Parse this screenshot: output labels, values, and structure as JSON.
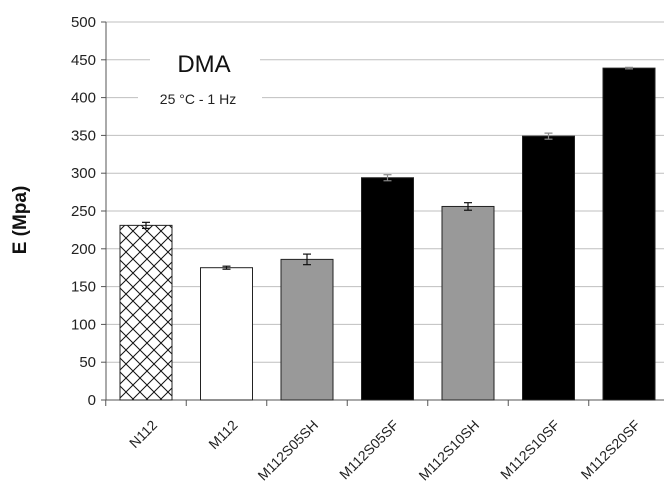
{
  "chart_data": {
    "type": "bar",
    "title": "",
    "xlabel": "",
    "ylabel": "E (Mpa)",
    "ylim": [
      0,
      500
    ],
    "yticks": [
      0,
      50,
      100,
      150,
      200,
      250,
      300,
      350,
      400,
      450,
      500
    ],
    "grid": "horizontal",
    "categories": [
      "N112",
      "M112",
      "M112S05SH",
      "M112S05SF",
      "M112S10SH",
      "M112S10SF",
      "M112S20SF"
    ],
    "values": [
      231,
      175,
      186,
      294,
      256,
      349,
      439
    ],
    "errors": [
      4,
      2,
      7,
      4,
      5,
      4,
      1
    ],
    "bar_styles": [
      "crosshatch",
      "white",
      "gray",
      "black",
      "gray",
      "black",
      "black"
    ],
    "annotations": {
      "method": "DMA",
      "conditions": "25 °C - 1 Hz"
    }
  },
  "colors": {
    "grid": "#bfbfbf",
    "axis": "#555555",
    "gray_fill": "#999999",
    "black_fill": "#000000",
    "white_fill": "#ffffff",
    "outline": "#222222"
  }
}
